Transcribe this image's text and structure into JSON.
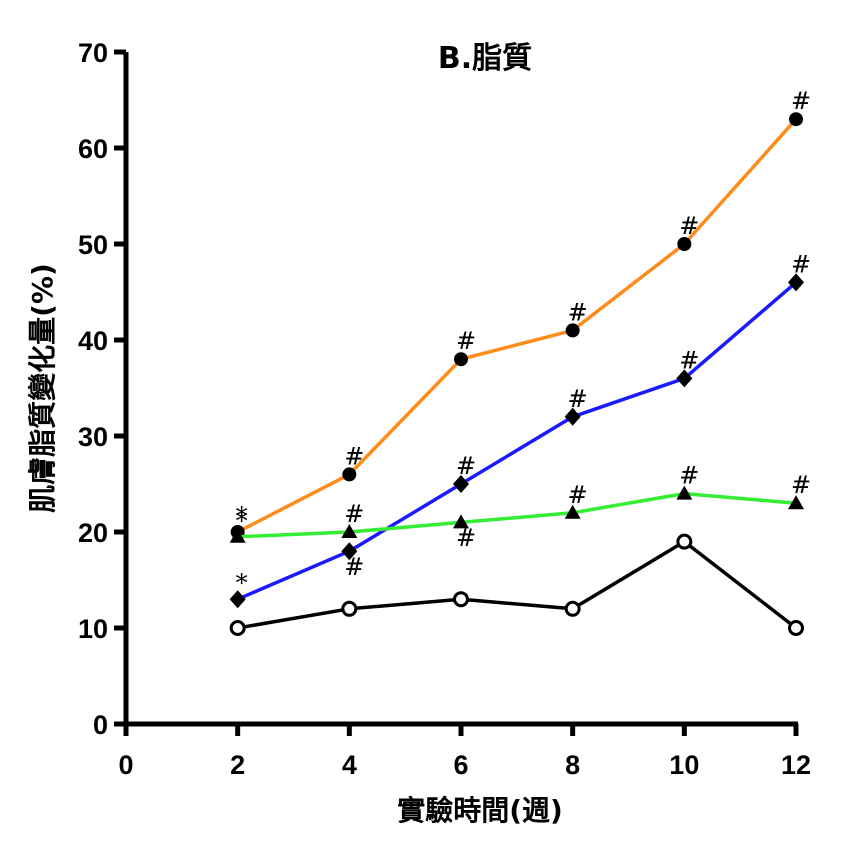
{
  "chart_data": {
    "type": "line",
    "title": "B.脂質",
    "xlabel": "實驗時間(週)",
    "ylabel": "肌膚脂質變化量(%)",
    "xlim": [
      0,
      12
    ],
    "ylim": [
      0,
      70
    ],
    "x_ticks": [
      "0",
      "2",
      "4",
      "6",
      "8",
      "10",
      "12"
    ],
    "y_ticks": [
      "0",
      "10",
      "20",
      "30",
      "40",
      "50",
      "60",
      "70"
    ],
    "x": [
      2,
      4,
      6,
      8,
      10,
      12
    ],
    "series": [
      {
        "name": "orange",
        "color": "#ff8c1a",
        "marker": "filled-circle",
        "values": [
          20,
          26,
          38,
          41,
          50,
          63
        ]
      },
      {
        "name": "blue",
        "color": "#1a1aff",
        "marker": "diamond",
        "values": [
          13,
          18,
          25,
          32,
          36,
          46
        ]
      },
      {
        "name": "green",
        "color": "#33ee33",
        "marker": "triangle",
        "values": [
          19.5,
          20,
          21,
          22,
          24,
          23
        ]
      },
      {
        "name": "black",
        "color": "#000000",
        "marker": "open-circle",
        "values": [
          10,
          12,
          13,
          12,
          19,
          10
        ]
      }
    ],
    "annotations": [
      {
        "text": "*",
        "x": 2,
        "y": 20,
        "series": "orange"
      },
      {
        "text": "*",
        "x": 2,
        "y": 19.5,
        "series": "green"
      },
      {
        "text": "*",
        "x": 2,
        "y": 13,
        "series": "blue"
      },
      {
        "text": "#",
        "x": 4,
        "y": 26,
        "series": "orange"
      },
      {
        "text": "#",
        "x": 4,
        "y": 20,
        "series": "green"
      },
      {
        "text": "#",
        "x": 4,
        "y": 14.5,
        "series": "blue"
      },
      {
        "text": "#",
        "x": 6,
        "y": 38,
        "series": "orange"
      },
      {
        "text": "#",
        "x": 6,
        "y": 25,
        "series": "blue"
      },
      {
        "text": "#",
        "x": 6,
        "y": 17.5,
        "series": "green"
      },
      {
        "text": "#",
        "x": 8,
        "y": 41,
        "series": "orange"
      },
      {
        "text": "#",
        "x": 8,
        "y": 32,
        "series": "blue"
      },
      {
        "text": "#",
        "x": 8,
        "y": 22,
        "series": "green"
      },
      {
        "text": "#",
        "x": 10,
        "y": 50,
        "series": "orange"
      },
      {
        "text": "#",
        "x": 10,
        "y": 36,
        "series": "blue"
      },
      {
        "text": "#",
        "x": 10,
        "y": 24,
        "series": "green"
      },
      {
        "text": "#",
        "x": 12,
        "y": 63,
        "series": "orange"
      },
      {
        "text": "#",
        "x": 12,
        "y": 46,
        "series": "blue"
      },
      {
        "text": "#",
        "x": 12,
        "y": 23,
        "series": "green"
      }
    ]
  }
}
